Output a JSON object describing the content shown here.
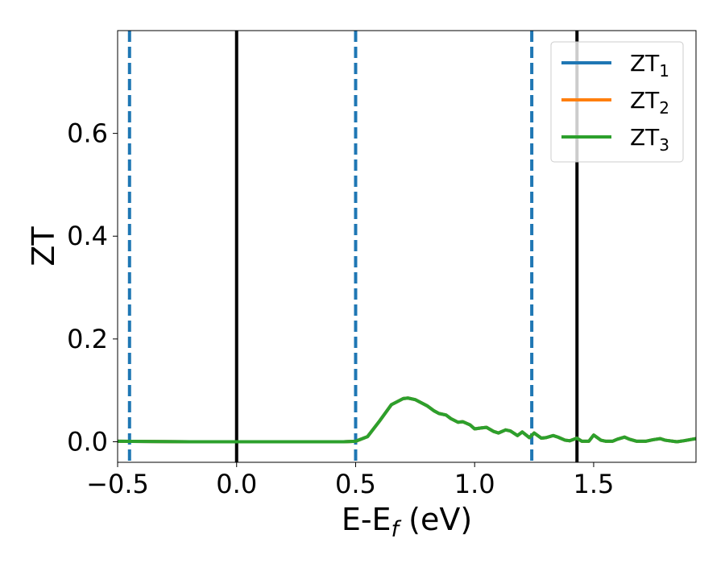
{
  "chart_data": {
    "type": "line",
    "xlabel": "E-E",
    "xlabel_sub": "f",
    "xlabel_unit": " (eV)",
    "ylabel": "ZT",
    "xlim": [
      -0.5,
      1.93
    ],
    "ylim": [
      -0.04,
      0.8
    ],
    "grid": false,
    "legend_placement": "top-right",
    "x_ticks": [
      {
        "value": -0.5,
        "label": "−0.5"
      },
      {
        "value": 0.0,
        "label": "0.0"
      },
      {
        "value": 0.5,
        "label": "0.5"
      },
      {
        "value": 1.0,
        "label": "1.0"
      },
      {
        "value": 1.5,
        "label": "1.5"
      }
    ],
    "y_ticks": [
      {
        "value": 0.0,
        "label": "0.0"
      },
      {
        "value": 0.2,
        "label": "0.2"
      },
      {
        "value": 0.4,
        "label": "0.4"
      },
      {
        "value": 0.6,
        "label": "0.6"
      }
    ],
    "reference_lines": [
      {
        "x": -0.45,
        "style": "dashed",
        "color": "#1f77b4"
      },
      {
        "x": 0.0,
        "style": "solid",
        "color": "#000000"
      },
      {
        "x": 0.5,
        "style": "dashed",
        "color": "#1f77b4"
      },
      {
        "x": 1.24,
        "style": "dashed",
        "color": "#1f77b4"
      },
      {
        "x": 1.43,
        "style": "solid",
        "color": "#000000"
      }
    ],
    "series": [
      {
        "name": "ZT",
        "sub": "1",
        "color": "#1f77b4",
        "x": [
          -0.5,
          -0.2,
          0.2,
          0.45,
          0.5,
          0.55,
          0.6,
          0.65,
          0.7,
          0.72,
          0.75,
          0.8,
          0.83,
          0.85,
          0.88,
          0.9,
          0.93,
          0.95,
          0.98,
          1.0,
          1.03,
          1.05,
          1.08,
          1.1,
          1.13,
          1.15,
          1.18,
          1.2,
          1.23,
          1.25,
          1.28,
          1.3,
          1.33,
          1.35,
          1.38,
          1.4,
          1.43,
          1.45,
          1.48,
          1.5,
          1.53,
          1.55,
          1.58,
          1.6,
          1.63,
          1.65,
          1.68,
          1.72,
          1.75,
          1.78,
          1.8,
          1.85,
          1.88,
          1.93
        ],
        "y": [
          0.001,
          0.0,
          0.0,
          0.0,
          0.001,
          0.01,
          0.04,
          0.072,
          0.084,
          0.085,
          0.082,
          0.07,
          0.06,
          0.055,
          0.052,
          0.045,
          0.038,
          0.039,
          0.033,
          0.025,
          0.027,
          0.028,
          0.02,
          0.017,
          0.023,
          0.021,
          0.012,
          0.019,
          0.008,
          0.017,
          0.007,
          0.008,
          0.012,
          0.009,
          0.003,
          0.002,
          0.007,
          0.001,
          0.001,
          0.013,
          0.003,
          0.001,
          0.001,
          0.005,
          0.009,
          0.005,
          0.001,
          0.001,
          0.004,
          0.006,
          0.003,
          0.0,
          0.002,
          0.006
        ]
      },
      {
        "name": "ZT",
        "sub": "2",
        "color": "#ff7f0e",
        "x": [
          -0.5,
          -0.2,
          0.2,
          0.45,
          0.5,
          0.55,
          0.6,
          0.65,
          0.7,
          0.72,
          0.75,
          0.8,
          0.83,
          0.85,
          0.88,
          0.9,
          0.93,
          0.95,
          0.98,
          1.0,
          1.03,
          1.05,
          1.08,
          1.1,
          1.13,
          1.15,
          1.18,
          1.2,
          1.23,
          1.25,
          1.28,
          1.3,
          1.33,
          1.35,
          1.38,
          1.4,
          1.43,
          1.45,
          1.48,
          1.5,
          1.53,
          1.55,
          1.58,
          1.6,
          1.63,
          1.65,
          1.68,
          1.72,
          1.75,
          1.78,
          1.8,
          1.85,
          1.88,
          1.93
        ],
        "y": [
          0.001,
          0.0,
          0.0,
          0.0,
          0.001,
          0.01,
          0.04,
          0.072,
          0.084,
          0.085,
          0.082,
          0.07,
          0.06,
          0.055,
          0.052,
          0.045,
          0.038,
          0.039,
          0.033,
          0.025,
          0.027,
          0.028,
          0.02,
          0.017,
          0.023,
          0.021,
          0.012,
          0.019,
          0.008,
          0.017,
          0.007,
          0.008,
          0.012,
          0.009,
          0.003,
          0.002,
          0.007,
          0.001,
          0.001,
          0.013,
          0.003,
          0.001,
          0.001,
          0.005,
          0.009,
          0.005,
          0.001,
          0.001,
          0.004,
          0.006,
          0.003,
          0.0,
          0.002,
          0.006
        ]
      },
      {
        "name": "ZT",
        "sub": "3",
        "color": "#2ca02c",
        "x": [
          -0.5,
          -0.2,
          0.2,
          0.45,
          0.5,
          0.55,
          0.6,
          0.65,
          0.7,
          0.72,
          0.75,
          0.8,
          0.83,
          0.85,
          0.88,
          0.9,
          0.93,
          0.95,
          0.98,
          1.0,
          1.03,
          1.05,
          1.08,
          1.1,
          1.13,
          1.15,
          1.18,
          1.2,
          1.23,
          1.25,
          1.28,
          1.3,
          1.33,
          1.35,
          1.38,
          1.4,
          1.43,
          1.45,
          1.48,
          1.5,
          1.53,
          1.55,
          1.58,
          1.6,
          1.63,
          1.65,
          1.68,
          1.72,
          1.75,
          1.78,
          1.8,
          1.85,
          1.88,
          1.93
        ],
        "y": [
          0.001,
          0.0,
          0.0,
          0.0,
          0.001,
          0.01,
          0.04,
          0.072,
          0.084,
          0.085,
          0.082,
          0.07,
          0.06,
          0.055,
          0.052,
          0.045,
          0.038,
          0.039,
          0.033,
          0.025,
          0.027,
          0.028,
          0.02,
          0.017,
          0.023,
          0.021,
          0.012,
          0.019,
          0.008,
          0.017,
          0.007,
          0.008,
          0.012,
          0.009,
          0.003,
          0.002,
          0.007,
          0.001,
          0.001,
          0.013,
          0.003,
          0.001,
          0.001,
          0.005,
          0.009,
          0.005,
          0.001,
          0.001,
          0.004,
          0.006,
          0.003,
          0.0,
          0.002,
          0.006
        ]
      }
    ]
  }
}
